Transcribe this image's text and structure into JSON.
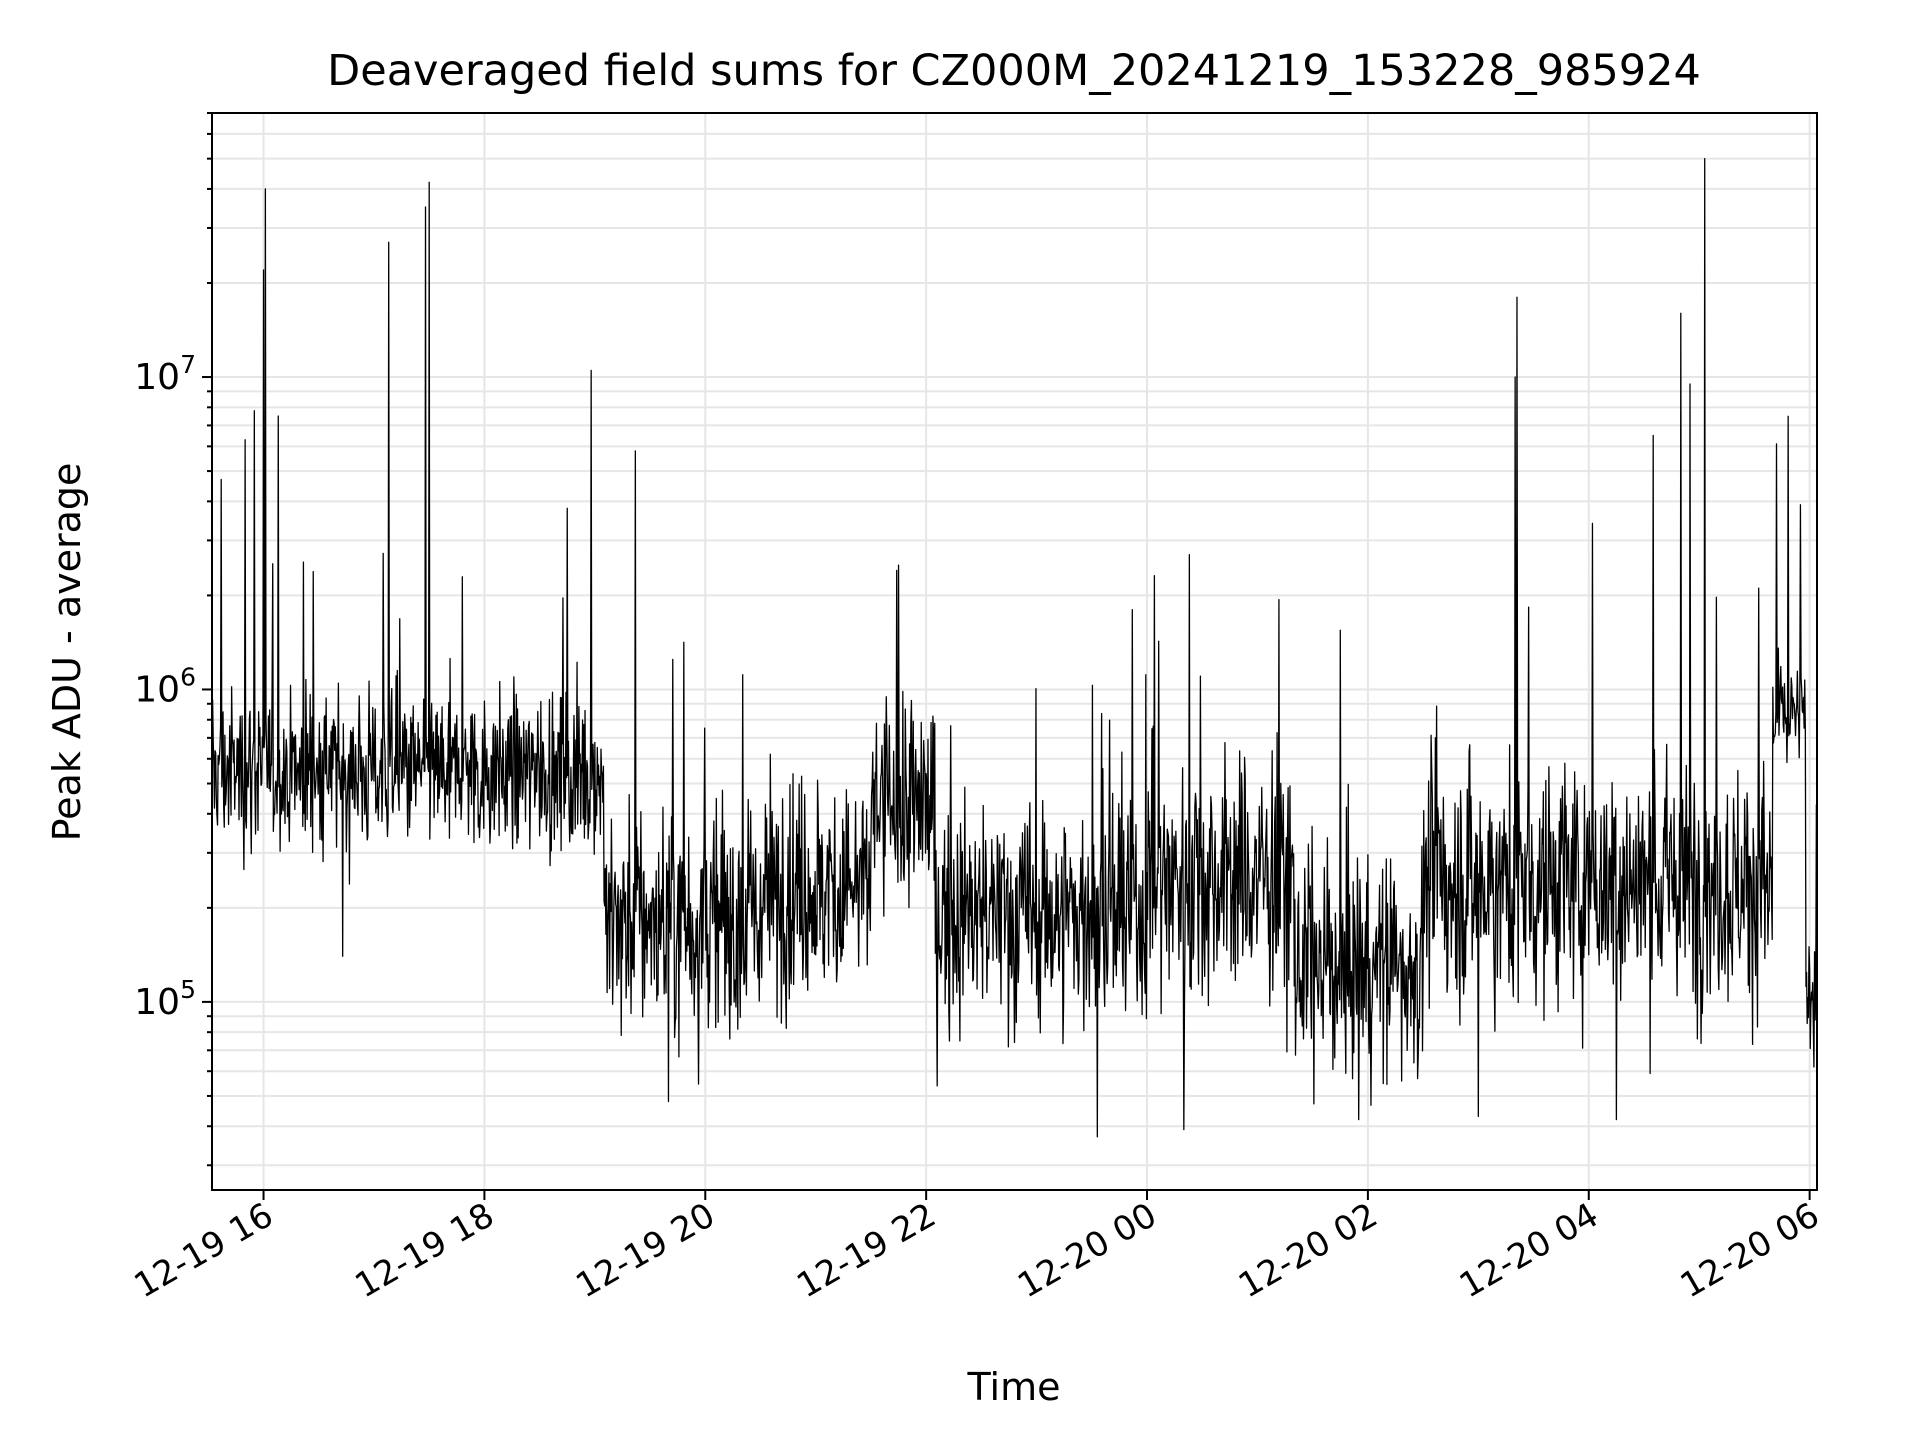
{
  "chart_data": {
    "type": "line",
    "title": "Deaveraged field sums for CZ000M_20241219_153228_985924",
    "xlabel": "Time",
    "ylabel": "Peak ADU - average",
    "y_scale": "log",
    "x_tick_labels": [
      "12-19 16",
      "12-19 18",
      "12-19 20",
      "12-19 22",
      "12-20 00",
      "12-20 02",
      "12-20 04",
      "12-20 06"
    ],
    "y_tick_labels": [
      {
        "base": "10",
        "exp": "5",
        "value": 100000
      },
      {
        "base": "10",
        "exp": "6",
        "value": 1000000
      },
      {
        "base": "10",
        "exp": "7",
        "value": 10000000
      }
    ],
    "xlim": [
      "2024-12-19 15:32",
      "2024-12-20 06:04"
    ],
    "ylim": [
      25000,
      70000000
    ],
    "grid": true,
    "line_color": "#000000",
    "grid_color": "#e6e6e6",
    "series": [
      {
        "baseline_segments": [
          {
            "start": "2024-12-19 15:32",
            "end": "2024-12-19 19:05",
            "level": 550000,
            "spread": 0.55
          },
          {
            "start": "2024-12-19 19:05",
            "end": "2024-12-19 20:30",
            "level": 180000,
            "spread": 0.85
          },
          {
            "start": "2024-12-19 20:30",
            "end": "2024-12-19 21:30",
            "level": 230000,
            "spread": 0.8
          },
          {
            "start": "2024-12-19 21:30",
            "end": "2024-12-19 22:05",
            "level": 420000,
            "spread": 0.75
          },
          {
            "start": "2024-12-19 22:05",
            "end": "2024-12-20 00:00",
            "level": 190000,
            "spread": 0.8
          },
          {
            "start": "2024-12-20 00:00",
            "end": "2024-12-20 01:20",
            "level": 250000,
            "spread": 0.85
          },
          {
            "start": "2024-12-20 01:20",
            "end": "2024-12-20 02:30",
            "level": 130000,
            "spread": 0.8
          },
          {
            "start": "2024-12-20 02:30",
            "end": "2024-12-20 05:40",
            "level": 240000,
            "spread": 0.85
          },
          {
            "start": "2024-12-20 05:40",
            "end": "2024-12-20 05:58",
            "level": 800000,
            "spread": 0.4
          },
          {
            "start": "2024-12-20 05:58",
            "end": "2024-12-20 06:04",
            "level": 110000,
            "spread": 0.5
          }
        ],
        "peaks": [
          {
            "t": "2024-12-19 15:37",
            "v": 4700000
          },
          {
            "t": "2024-12-19 15:50",
            "v": 6300000
          },
          {
            "t": "2024-12-19 15:55",
            "v": 7800000
          },
          {
            "t": "2024-12-19 16:00",
            "v": 22000000
          },
          {
            "t": "2024-12-19 16:01",
            "v": 40000000
          },
          {
            "t": "2024-12-19 16:08",
            "v": 7500000
          },
          {
            "t": "2024-12-19 17:08",
            "v": 27000000
          },
          {
            "t": "2024-12-19 17:28",
            "v": 35000000
          },
          {
            "t": "2024-12-19 17:30",
            "v": 42000000
          },
          {
            "t": "2024-12-19 18:45",
            "v": 3800000
          },
          {
            "t": "2024-12-19 18:58",
            "v": 10500000
          },
          {
            "t": "2024-12-19 19:22",
            "v": 5800000
          },
          {
            "t": "2024-12-19 21:45",
            "v": 2500000
          },
          {
            "t": "2024-12-19 23:52",
            "v": 1800000
          },
          {
            "t": "2024-12-20 00:23",
            "v": 2700000
          },
          {
            "t": "2024-12-20 03:20",
            "v": 10000000
          },
          {
            "t": "2024-12-20 03:21",
            "v": 18000000
          },
          {
            "t": "2024-12-20 04:02",
            "v": 3400000
          },
          {
            "t": "2024-12-20 04:35",
            "v": 6500000
          },
          {
            "t": "2024-12-20 04:50",
            "v": 16000000
          },
          {
            "t": "2024-12-20 04:55",
            "v": 9500000
          },
          {
            "t": "2024-12-20 05:03",
            "v": 50000000
          },
          {
            "t": "2024-12-20 05:55",
            "v": 3900000
          }
        ],
        "dips": [
          {
            "t": "2024-12-19 16:43",
            "v": 140000
          },
          {
            "t": "2024-12-19 19:40",
            "v": 48000
          },
          {
            "t": "2024-12-19 23:33",
            "v": 37000
          },
          {
            "t": "2024-12-20 00:20",
            "v": 39000
          },
          {
            "t": "2024-12-20 01:55",
            "v": 42000
          },
          {
            "t": "2024-12-20 03:00",
            "v": 43000
          },
          {
            "t": "2024-12-20 04:15",
            "v": 42000
          }
        ]
      }
    ]
  }
}
